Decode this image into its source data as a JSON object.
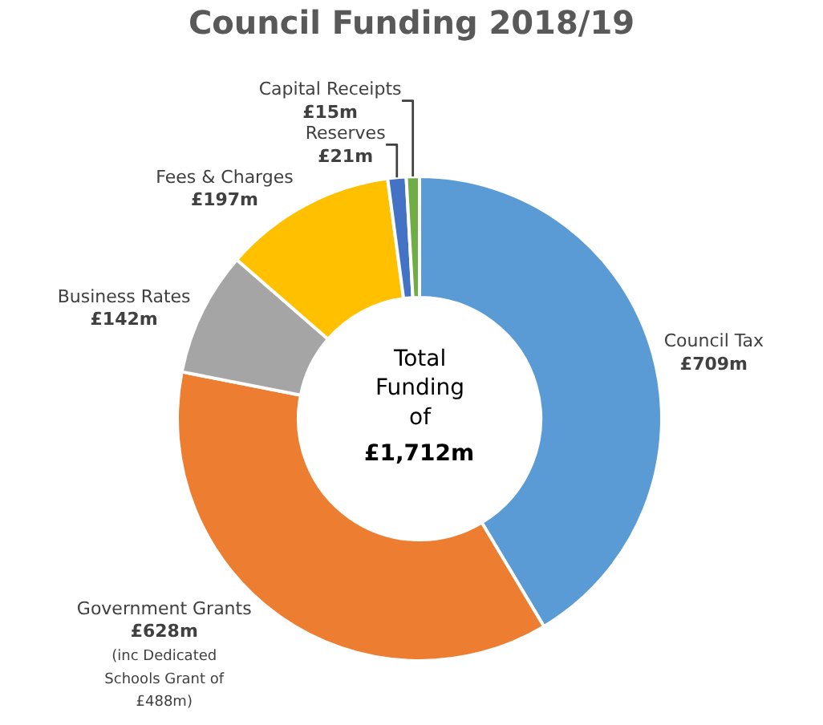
{
  "chart_data": {
    "type": "donut",
    "title": "Council Funding 2018/19",
    "categories": [
      "Council Tax",
      "Government Grants",
      "Business Rates",
      "Fees & Charges",
      "Reserves",
      "Capital Receipts"
    ],
    "values": [
      709,
      628,
      142,
      197,
      21,
      15
    ],
    "value_labels": [
      "£709m",
      "£628m",
      "£142m",
      "£197m",
      "£21m",
      "£15m"
    ],
    "colors": [
      "#5b9bd5",
      "#ed7d31",
      "#a5a5a5",
      "#ffc000",
      "#4472c4",
      "#70ad47"
    ],
    "annotations": [
      "Total Funding of",
      "£1,712m",
      "(inc Dedicated Schools Grant of £488m)"
    ],
    "legend": false
  }
}
